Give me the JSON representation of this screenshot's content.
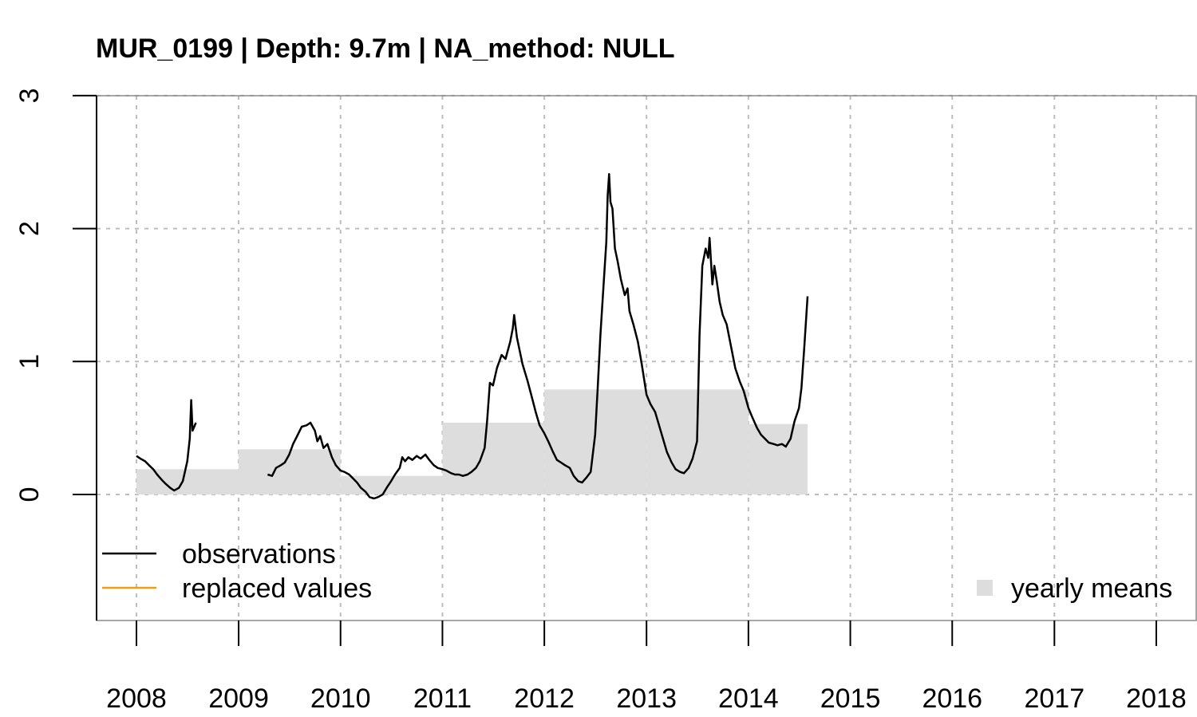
{
  "chart_data": {
    "type": "line",
    "title": "MUR_0199 | Depth: 9.7m | NA_method: NULL",
    "xlabel": "",
    "ylabel": "",
    "xlim": [
      "2008-01-01",
      "2018-01-01"
    ],
    "ylim": [
      -0.95,
      3
    ],
    "x_ticks": [
      "2008",
      "2009",
      "2010",
      "2011",
      "2012",
      "2013",
      "2014",
      "2015",
      "2016",
      "2017",
      "2018"
    ],
    "y_ticks": [
      "0",
      "1",
      "2",
      "3"
    ],
    "grid": true,
    "legend": [
      {
        "label": "observations",
        "type": "line",
        "color": "#000000",
        "placement": "bottom-left"
      },
      {
        "label": "replaced values",
        "type": "line",
        "color": "#f39c12",
        "placement": "bottom-left"
      },
      {
        "label": "yearly means",
        "type": "square",
        "color": "#dddddd",
        "placement": "bottom-right"
      }
    ],
    "yearly_means": [
      {
        "year": "2008",
        "value": 0.19
      },
      {
        "year": "2009",
        "value": 0.34
      },
      {
        "year": "2010",
        "value": 0.14
      },
      {
        "year": "2011",
        "value": 0.54
      },
      {
        "year": "2012",
        "value": 0.79
      },
      {
        "year": "2013",
        "value": 0.79
      },
      {
        "year": "2014",
        "value": 0.53
      }
    ],
    "yearly_means_end": "2014-08-01",
    "series": [
      {
        "color": "#000000",
        "segments": [
          [
            [
              "2008-01-01",
              0.29
            ],
            [
              "2008-01-15",
              0.27
            ],
            [
              "2008-02-01",
              0.25
            ],
            [
              "2008-02-15",
              0.22
            ],
            [
              "2008-03-01",
              0.19
            ],
            [
              "2008-03-15",
              0.15
            ],
            [
              "2008-04-01",
              0.11
            ],
            [
              "2008-04-15",
              0.08
            ],
            [
              "2008-05-01",
              0.05
            ],
            [
              "2008-05-15",
              0.03
            ],
            [
              "2008-06-01",
              0.05
            ],
            [
              "2008-06-15",
              0.1
            ],
            [
              "2008-07-01",
              0.25
            ],
            [
              "2008-07-10",
              0.42
            ],
            [
              "2008-07-15",
              0.71
            ],
            [
              "2008-07-20",
              0.48
            ],
            [
              "2008-08-01",
              0.54
            ]
          ],
          [
            [
              "2009-04-15",
              0.15
            ],
            [
              "2009-05-01",
              0.14
            ],
            [
              "2009-05-15",
              0.2
            ],
            [
              "2009-06-01",
              0.22
            ],
            [
              "2009-06-15",
              0.24
            ],
            [
              "2009-07-01",
              0.3
            ],
            [
              "2009-07-15",
              0.38
            ],
            [
              "2009-08-01",
              0.45
            ],
            [
              "2009-08-15",
              0.51
            ],
            [
              "2009-09-01",
              0.52
            ],
            [
              "2009-09-15",
              0.54
            ],
            [
              "2009-10-01",
              0.48
            ],
            [
              "2009-10-10",
              0.4
            ],
            [
              "2009-10-20",
              0.44
            ],
            [
              "2009-11-01",
              0.35
            ],
            [
              "2009-11-15",
              0.38
            ],
            [
              "2009-12-01",
              0.28
            ],
            [
              "2009-12-15",
              0.22
            ],
            [
              "2010-01-01",
              0.18
            ],
            [
              "2010-01-15",
              0.17
            ],
            [
              "2010-02-01",
              0.15
            ],
            [
              "2010-02-15",
              0.12
            ],
            [
              "2010-03-01",
              0.09
            ],
            [
              "2010-03-15",
              0.05
            ],
            [
              "2010-04-01",
              0.02
            ],
            [
              "2010-04-15",
              -0.02
            ],
            [
              "2010-05-01",
              -0.03
            ],
            [
              "2010-05-15",
              -0.02
            ],
            [
              "2010-06-01",
              0.0
            ],
            [
              "2010-06-15",
              0.05
            ],
            [
              "2010-07-01",
              0.1
            ],
            [
              "2010-07-15",
              0.15
            ],
            [
              "2010-08-01",
              0.2
            ],
            [
              "2010-08-10",
              0.28
            ],
            [
              "2010-08-20",
              0.25
            ],
            [
              "2010-09-01",
              0.28
            ],
            [
              "2010-09-15",
              0.26
            ],
            [
              "2010-10-01",
              0.29
            ],
            [
              "2010-10-15",
              0.27
            ],
            [
              "2010-11-01",
              0.3
            ],
            [
              "2010-11-15",
              0.26
            ],
            [
              "2010-12-01",
              0.22
            ],
            [
              "2010-12-15",
              0.2
            ],
            [
              "2011-01-01",
              0.19
            ],
            [
              "2011-01-15",
              0.18
            ],
            [
              "2011-02-01",
              0.16
            ],
            [
              "2011-02-15",
              0.15
            ],
            [
              "2011-03-01",
              0.15
            ],
            [
              "2011-03-15",
              0.14
            ],
            [
              "2011-04-01",
              0.15
            ],
            [
              "2011-04-15",
              0.17
            ],
            [
              "2011-05-01",
              0.2
            ],
            [
              "2011-05-15",
              0.25
            ],
            [
              "2011-06-01",
              0.35
            ],
            [
              "2011-06-10",
              0.55
            ],
            [
              "2011-06-20",
              0.84
            ],
            [
              "2011-07-01",
              0.82
            ],
            [
              "2011-07-15",
              0.95
            ],
            [
              "2011-08-01",
              1.05
            ],
            [
              "2011-08-15",
              1.02
            ],
            [
              "2011-09-01",
              1.15
            ],
            [
              "2011-09-10",
              1.25
            ],
            [
              "2011-09-15",
              1.35
            ],
            [
              "2011-09-25",
              1.18
            ],
            [
              "2011-10-05",
              1.08
            ],
            [
              "2011-10-15",
              0.98
            ],
            [
              "2011-11-01",
              0.86
            ],
            [
              "2011-11-15",
              0.75
            ],
            [
              "2011-12-01",
              0.62
            ],
            [
              "2011-12-15",
              0.52
            ],
            [
              "2012-01-01",
              0.46
            ],
            [
              "2012-01-15",
              0.4
            ],
            [
              "2012-02-01",
              0.32
            ],
            [
              "2012-02-15",
              0.26
            ],
            [
              "2012-03-01",
              0.24
            ],
            [
              "2012-03-15",
              0.22
            ],
            [
              "2012-04-01",
              0.2
            ],
            [
              "2012-04-15",
              0.14
            ],
            [
              "2012-05-01",
              0.1
            ],
            [
              "2012-05-15",
              0.09
            ],
            [
              "2012-06-01",
              0.13
            ],
            [
              "2012-06-15",
              0.17
            ],
            [
              "2012-07-01",
              0.45
            ],
            [
              "2012-07-10",
              0.8
            ],
            [
              "2012-07-20",
              1.2
            ],
            [
              "2012-08-01",
              1.6
            ],
            [
              "2012-08-10",
              1.9
            ],
            [
              "2012-08-15",
              2.25
            ],
            [
              "2012-08-20",
              2.41
            ],
            [
              "2012-08-25",
              2.2
            ],
            [
              "2012-09-01",
              2.15
            ],
            [
              "2012-09-10",
              1.85
            ],
            [
              "2012-09-20",
              1.75
            ],
            [
              "2012-10-01",
              1.62
            ],
            [
              "2012-10-15",
              1.5
            ],
            [
              "2012-10-25",
              1.55
            ],
            [
              "2012-11-01",
              1.38
            ],
            [
              "2012-11-15",
              1.28
            ],
            [
              "2012-12-01",
              1.15
            ],
            [
              "2012-12-15",
              0.98
            ],
            [
              "2013-01-01",
              0.75
            ],
            [
              "2013-01-15",
              0.68
            ],
            [
              "2013-02-01",
              0.62
            ],
            [
              "2013-02-15",
              0.52
            ],
            [
              "2013-03-01",
              0.42
            ],
            [
              "2013-03-15",
              0.32
            ],
            [
              "2013-04-01",
              0.24
            ],
            [
              "2013-04-15",
              0.19
            ],
            [
              "2013-05-01",
              0.17
            ],
            [
              "2013-05-15",
              0.16
            ],
            [
              "2013-06-01",
              0.2
            ],
            [
              "2013-06-15",
              0.27
            ],
            [
              "2013-07-01",
              0.4
            ],
            [
              "2013-07-10",
              1.2
            ],
            [
              "2013-07-20",
              1.72
            ],
            [
              "2013-08-01",
              1.85
            ],
            [
              "2013-08-10",
              1.78
            ],
            [
              "2013-08-15",
              1.93
            ],
            [
              "2013-08-25",
              1.58
            ],
            [
              "2013-09-01",
              1.72
            ],
            [
              "2013-09-10",
              1.6
            ],
            [
              "2013-09-20",
              1.45
            ],
            [
              "2013-10-01",
              1.35
            ],
            [
              "2013-10-15",
              1.28
            ],
            [
              "2013-11-01",
              1.1
            ],
            [
              "2013-11-15",
              0.95
            ],
            [
              "2013-12-01",
              0.85
            ],
            [
              "2013-12-15",
              0.78
            ],
            [
              "2014-01-01",
              0.65
            ],
            [
              "2014-01-15",
              0.58
            ],
            [
              "2014-02-01",
              0.5
            ],
            [
              "2014-02-15",
              0.45
            ],
            [
              "2014-03-01",
              0.42
            ],
            [
              "2014-03-15",
              0.39
            ],
            [
              "2014-04-01",
              0.38
            ],
            [
              "2014-04-15",
              0.37
            ],
            [
              "2014-05-01",
              0.38
            ],
            [
              "2014-05-15",
              0.36
            ],
            [
              "2014-06-01",
              0.42
            ],
            [
              "2014-06-15",
              0.55
            ],
            [
              "2014-07-01",
              0.65
            ],
            [
              "2014-07-10",
              0.8
            ],
            [
              "2014-07-20",
              1.1
            ],
            [
              "2014-08-01",
              1.49
            ]
          ]
        ]
      }
    ]
  }
}
